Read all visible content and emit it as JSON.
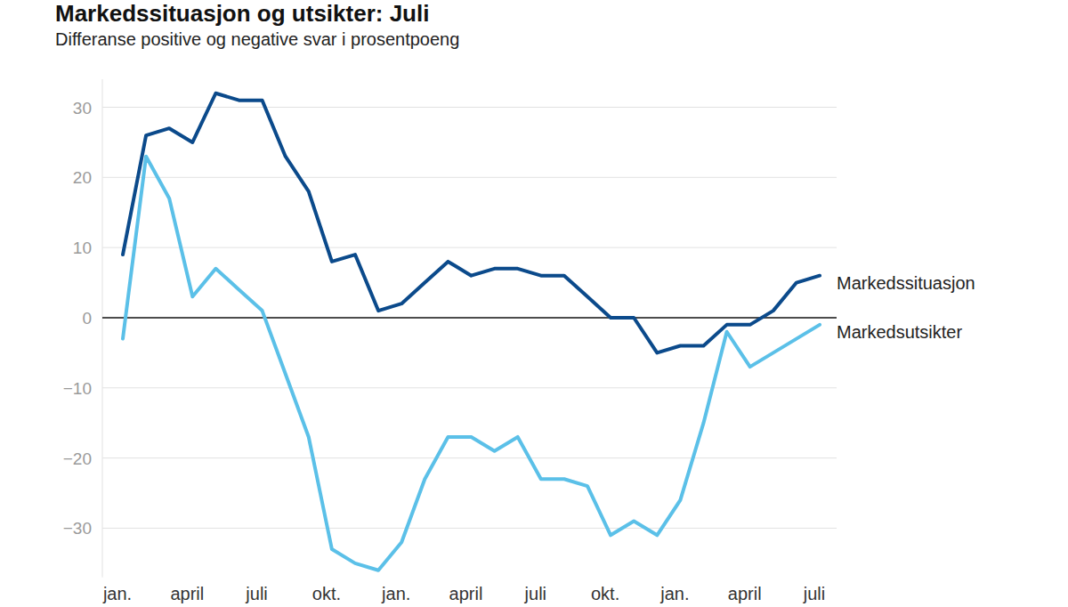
{
  "chart_data": {
    "type": "line",
    "title": "Markedssituasjon og utsikter: Juli",
    "subtitle": "Differanse positive og negative svar i prosentpoeng",
    "categories": [
      "jan.",
      null,
      null,
      "april",
      null,
      null,
      "juli",
      null,
      null,
      "okt.",
      null,
      null,
      "jan.",
      null,
      null,
      "april",
      null,
      null,
      "juli",
      null,
      null,
      "okt.",
      null,
      null,
      "jan.",
      null,
      null,
      "april",
      null,
      null,
      "juli"
    ],
    "series": [
      {
        "name": "Markedssituasjon",
        "color": "#0b4a8b",
        "values": [
          9,
          26,
          27,
          25,
          32,
          31,
          31,
          23,
          18,
          8,
          9,
          1,
          2,
          5,
          8,
          6,
          7,
          7,
          6,
          6,
          3,
          0,
          0,
          -5,
          -4,
          -4,
          -1,
          -1,
          1,
          5,
          6
        ]
      },
      {
        "name": "Markedsutsikter",
        "color": "#5bc0e8",
        "values": [
          -3,
          23,
          17,
          3,
          7,
          4,
          1,
          -8,
          -17,
          -33,
          -35,
          -36,
          -32,
          -23,
          -17,
          -17,
          -19,
          -17,
          -23,
          -23,
          -24,
          -31,
          -29,
          -31,
          -26,
          -15,
          -2,
          -7,
          -5,
          -3,
          -1
        ]
      }
    ],
    "ylim": [
      -37,
      34
    ],
    "yticks": [
      {
        "value": -30,
        "label": "−30"
      },
      {
        "value": -20,
        "label": "−20"
      },
      {
        "value": -10,
        "label": "−10"
      },
      0,
      10,
      20,
      30
    ],
    "grid": true
  }
}
